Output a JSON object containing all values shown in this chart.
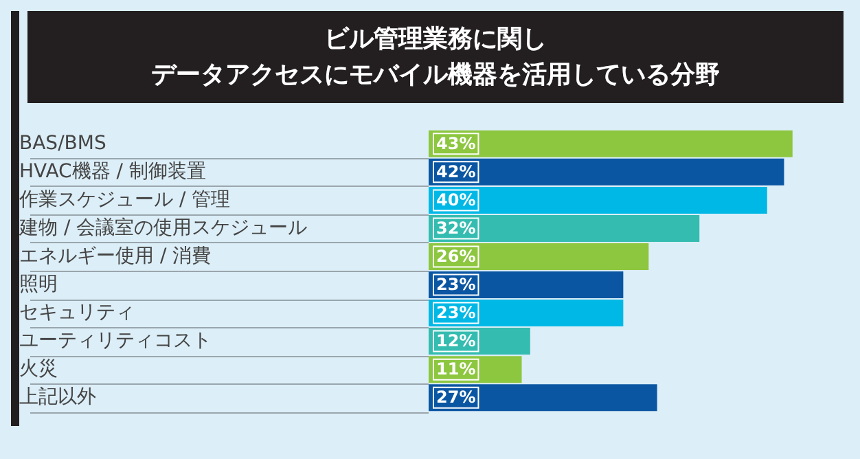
{
  "chart_data": {
    "type": "bar",
    "orientation": "horizontal",
    "tick_labels": "y",
    "title": "ビル管理業務に関し",
    "subtitle": "データアクセスにモバイル機器を活用している分野",
    "categories": [
      "BAS/BMS",
      "HVAC機器 / 制御装置",
      "作業スケジュール / 管理",
      "建物 / 会議室の使用スケジュール",
      "エネルギー使用 / 消費",
      "照明",
      "セキュリティ",
      "ユーティリティコスト",
      "火災",
      "上記以外"
    ],
    "values": [
      43,
      42,
      40,
      32,
      26,
      23,
      23,
      12,
      11,
      27
    ],
    "value_labels": [
      "43%",
      "42%",
      "40%",
      "32%",
      "26%",
      "23%",
      "23%",
      "12%",
      "11%",
      "27%"
    ],
    "colors": [
      "#8dc63f",
      "#0b56a2",
      "#00b8e6",
      "#35bcb0",
      "#8dc63f",
      "#0b56a2",
      "#00b8e6",
      "#35bcb0",
      "#8dc63f",
      "#0b56a2"
    ],
    "grid": false,
    "legend": false
  }
}
